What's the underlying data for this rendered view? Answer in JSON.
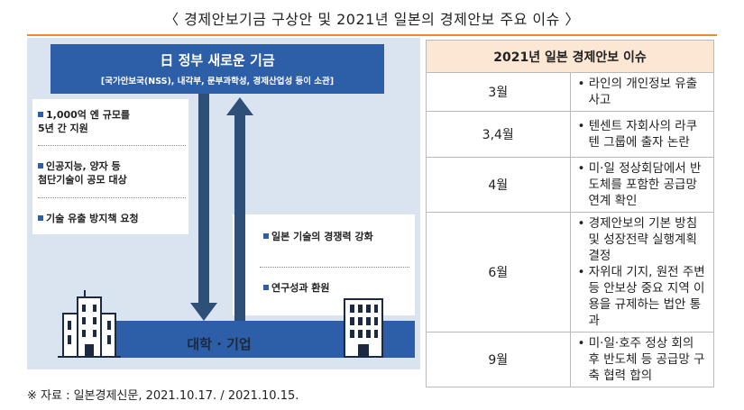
{
  "title": "〈 경제안보기금 구상안 및 2021년 일본의 경제안보 주요 이슈 〉",
  "diagram": {
    "gov_title": "日 정부 새로운 기금",
    "gov_subtitle": "[국가안보국(NSS), 내각부, 문부과학성, 경제산업성 등이 소관]",
    "left_items": [
      "1,000억 엔 규모를\n5년 간 지원",
      "인공지능, 양자 등\n첨단기술이 공모 대상",
      "기술 유출 방지책 요청"
    ],
    "right_items": [
      "일본 기술의 경쟁력 강화",
      "연구성과 환원"
    ],
    "bottom_label": "대학 · 기업"
  },
  "table": {
    "header": "2021년 일본 경제안보 이슈",
    "rows": [
      {
        "month": "3월",
        "items": [
          "라인의 개인정보 유출 사고"
        ]
      },
      {
        "month": "3,4월",
        "items": [
          "텐센트 자회사의 라쿠텐 그룹에 출자 논란"
        ]
      },
      {
        "month": "4월",
        "items": [
          "미·일 정상회담에서 반도체를 포함한 공급망 연계 확인"
        ]
      },
      {
        "month": "6월",
        "items": [
          "경제안보의 기본 방침 및 성장전략 실행계획 결정",
          "자위대 기지, 원전 주변 등 안보상 중요 지역 이용을 규제하는 법안 통과"
        ]
      },
      {
        "month": "9월",
        "items": [
          "미·일·호주 정상 회의 후 반도체 등 공급망 구축 협력 합의"
        ]
      }
    ]
  },
  "source": "※ 자료 : 일본경제신문, 2021.10.17. / 2021.10.15."
}
